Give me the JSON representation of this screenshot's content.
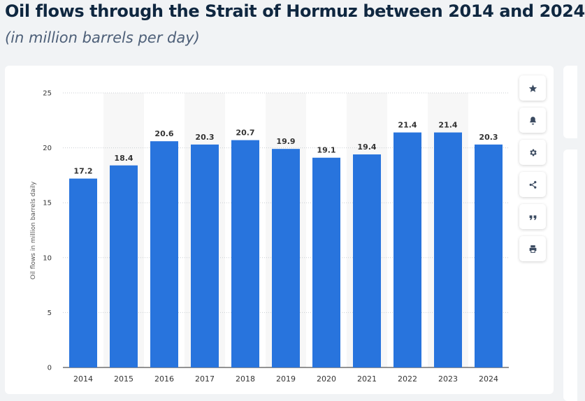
{
  "chart_data": {
    "type": "bar",
    "title": "Oil flows through the Strait of Hormuz between 2014 and 2024",
    "subtitle": "(in million barrels per day)",
    "ylabel": "Oil flows in million barrels daily",
    "xlabel": "",
    "categories": [
      "2014",
      "2015",
      "2016",
      "2017",
      "2018",
      "2019",
      "2020",
      "2021",
      "2022",
      "2023",
      "2024"
    ],
    "values": [
      17.2,
      18.4,
      20.6,
      20.3,
      20.7,
      19.9,
      19.1,
      19.4,
      21.4,
      21.4,
      20.3
    ],
    "value_labels": [
      "17.2",
      "18.4",
      "20.6",
      "20.3",
      "20.7",
      "19.9",
      "19.1",
      "19.4",
      "21.4",
      "21.4",
      "20.3"
    ],
    "ylim": [
      0,
      25
    ],
    "yticks": [
      "0",
      "5",
      "10",
      "15",
      "20",
      "25"
    ],
    "grid": true,
    "bar_color": "#2874dd"
  },
  "toolbar": {
    "icons": [
      "star-icon",
      "bell-icon",
      "gear-icon",
      "share-icon",
      "quote-icon",
      "print-icon"
    ]
  }
}
